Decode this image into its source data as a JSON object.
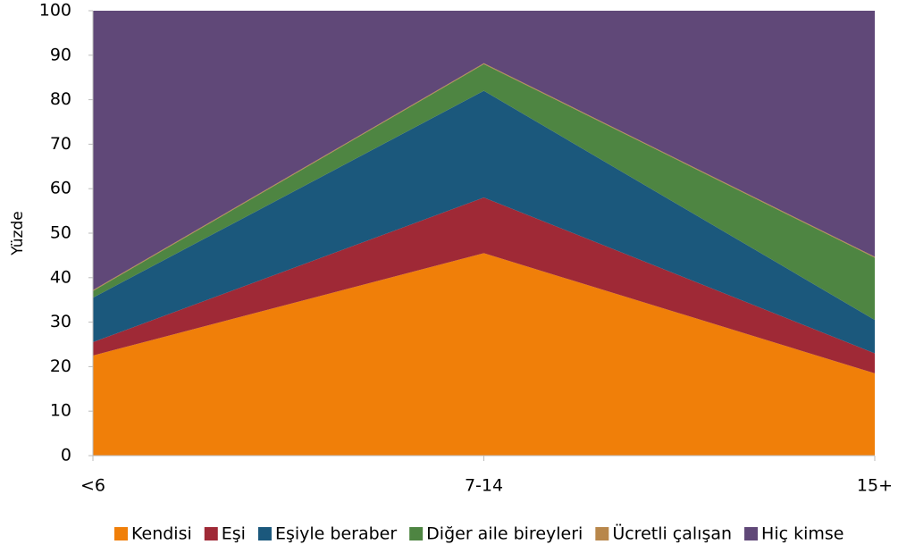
{
  "chart_data": {
    "type": "stacked_area",
    "y_label": "Yüzde",
    "categories": [
      "<6",
      "7-14",
      "15+"
    ],
    "series": [
      {
        "name": "Kendisi",
        "color": "#f07f09",
        "values": [
          22.5,
          45.5,
          18.5
        ]
      },
      {
        "name": "Eşi",
        "color": "#9f2936",
        "values": [
          3,
          12.5,
          4.5
        ]
      },
      {
        "name": "Eşiyle beraber",
        "color": "#1b587c",
        "values": [
          10,
          24,
          7.5
        ]
      },
      {
        "name": "Diğer aile bireyleri",
        "color": "#4e8542",
        "values": [
          1.5,
          6,
          14
        ]
      },
      {
        "name": "Ücretli çalışan",
        "color": "#b8874b",
        "values": [
          0.2,
          0.2,
          0.2
        ]
      },
      {
        "name": "Hiç kimse",
        "color": "#604878",
        "values": [
          62.8,
          11.8,
          55.3
        ]
      }
    ],
    "ylim": [
      0,
      100
    ],
    "yticks": [
      0,
      10,
      20,
      30,
      40,
      50,
      60,
      70,
      80,
      90,
      100
    ],
    "legend": "bottom"
  }
}
